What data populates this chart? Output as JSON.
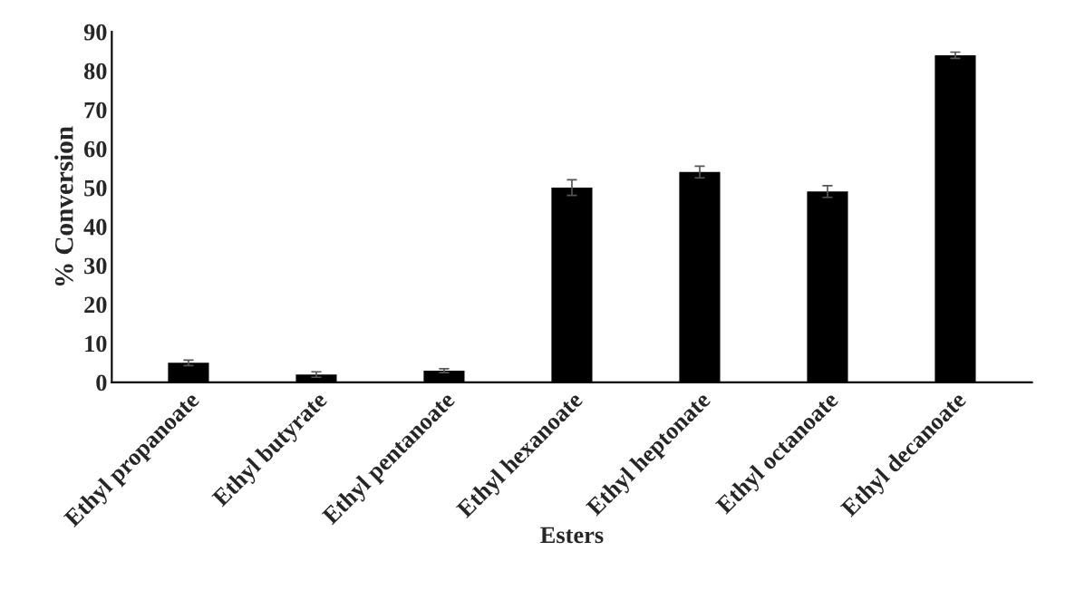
{
  "chart_data": {
    "type": "bar",
    "xlabel": "Esters",
    "ylabel": "% Conversion",
    "categories": [
      "Ethyl propanoate",
      "Ethyl butyrate",
      "Ethyl pentanoate",
      "Ethyl hexanoate",
      "Ethyl heptonate",
      "Ethyl octanoate",
      "Ethyl decanoate"
    ],
    "values": [
      5,
      2,
      3,
      50,
      54,
      49,
      84
    ],
    "errors": [
      0.7,
      0.7,
      0.5,
      2,
      1.5,
      1.5,
      0.8
    ],
    "color": "#000000",
    "ylim": [
      0,
      90
    ],
    "yticks": [
      0,
      10,
      20,
      30,
      40,
      50,
      60,
      70,
      80,
      90
    ],
    "grid": false
  }
}
